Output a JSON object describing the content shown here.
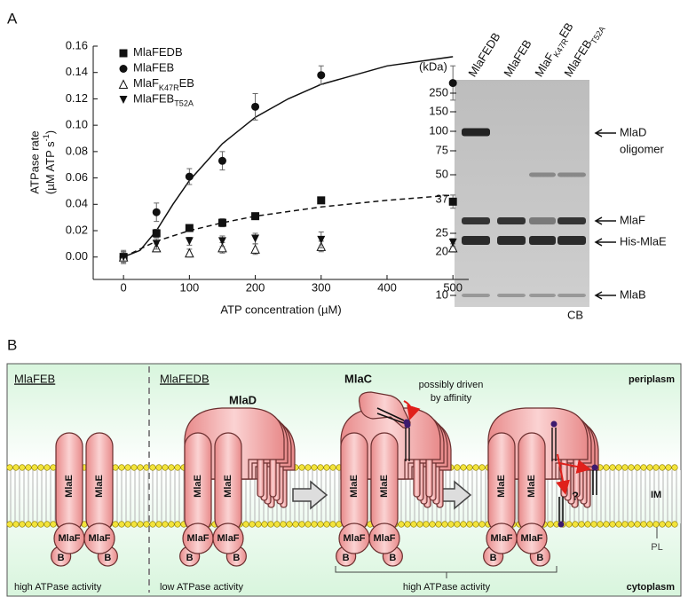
{
  "panel_labels": [
    "A",
    "B"
  ],
  "chart_data": {
    "type": "scatter",
    "xlabel": "ATP concentration  (µM)",
    "ylabel_line1": "ATPase rate",
    "ylabel_line2": [
      {
        "text": "(µM ATP s"
      },
      {
        "text": "-1",
        "sup": true
      },
      {
        "text": ")"
      }
    ],
    "x": [
      0,
      50,
      100,
      150,
      200,
      300,
      500
    ],
    "series": [
      {
        "name_parts": [
          {
            "text": "MlaFEDB"
          }
        ],
        "marker": "square",
        "color": "#111111",
        "values": [
          0.0,
          0.018,
          0.022,
          0.026,
          0.031,
          0.043,
          0.042
        ],
        "errors": [
          0.004,
          0.003,
          0.002,
          0.003,
          0.002,
          0.002,
          0.005
        ]
      },
      {
        "name_parts": [
          {
            "text": "MlaFEB"
          }
        ],
        "marker": "circle",
        "color": "#111111",
        "values": [
          0.0,
          0.034,
          0.061,
          0.073,
          0.114,
          0.138,
          0.132
        ],
        "errors": [
          0.004,
          0.007,
          0.006,
          0.007,
          0.01,
          0.007,
          0.013
        ]
      },
      {
        "name_parts": [
          {
            "text": "MlaF"
          },
          {
            "text": "K47R",
            "sub": true
          },
          {
            "text": "EB"
          }
        ],
        "marker": "triangle-open",
        "color": "#111111",
        "values": [
          0.0,
          0.007,
          0.003,
          0.007,
          0.006,
          0.008,
          0.007
        ],
        "errors": [
          0.005,
          0.003,
          0.003,
          0.004,
          0.004,
          0.004,
          0.003
        ]
      },
      {
        "name_parts": [
          {
            "text": "MlaFEB"
          },
          {
            "text": "T52A",
            "sub": true
          }
        ],
        "marker": "triangle-down",
        "color": "#111111",
        "values": [
          0.0,
          0.01,
          0.012,
          0.012,
          0.014,
          0.013,
          0.011
        ],
        "errors": [
          0.003,
          0.004,
          0.003,
          0.004,
          0.004,
          0.006,
          0.003
        ]
      }
    ],
    "fits": [
      {
        "style": "solid",
        "x": [
          0,
          25,
          50,
          75,
          100,
          150,
          200,
          250,
          300,
          400,
          500
        ],
        "values": [
          0.0,
          0.005,
          0.02,
          0.04,
          0.058,
          0.086,
          0.106,
          0.12,
          0.131,
          0.145,
          0.152
        ]
      },
      {
        "style": "dashed",
        "x": [
          0,
          50,
          100,
          150,
          200,
          300,
          400,
          500
        ],
        "values": [
          0.0,
          0.012,
          0.02,
          0.026,
          0.031,
          0.038,
          0.043,
          0.047
        ]
      }
    ],
    "xlim": [
      -46,
      524
    ],
    "ylim": [
      -0.017,
      0.16
    ],
    "xticks": [
      0,
      100,
      200,
      300,
      400,
      500
    ],
    "yticks": [
      {
        "value": 0,
        "label": "0.00"
      },
      {
        "value": 0.02,
        "label": "0.02"
      },
      {
        "value": 0.04,
        "label": "0.04"
      },
      {
        "value": 0.06,
        "label": "0.06"
      },
      {
        "value": 0.08,
        "label": "0.08"
      },
      {
        "value": 0.1,
        "label": "0.10"
      },
      {
        "value": 0.12,
        "label": "0.12"
      },
      {
        "value": 0.14,
        "label": "0.14"
      },
      {
        "value": 0.16,
        "label": "0.16"
      }
    ],
    "legend": "upper-left"
  },
  "gel": {
    "unit": "(kDa)",
    "lanes": [
      [
        {
          "text": "MlaFEDB"
        }
      ],
      [
        {
          "text": "MlaFEB"
        }
      ],
      [
        {
          "text": "MlaF"
        },
        {
          "text": "K47R",
          "sub": true
        },
        {
          "text": "EB"
        }
      ],
      [
        {
          "text": "MlaFEB"
        },
        {
          "text": "T52A",
          "sub": true
        }
      ]
    ],
    "markers": [
      250,
      150,
      100,
      75,
      50,
      37,
      25,
      20,
      10
    ],
    "bands": [
      "MlaD",
      "oligomer",
      "MlaF",
      "His-MlaE",
      "MlaB"
    ],
    "stain": "CB"
  },
  "diagram": {
    "headers": [
      "MlaFEB",
      "MlaFEDB"
    ],
    "mlaD": "MlaD",
    "mlaC": "MlaC",
    "note": [
      "possibly driven",
      "by affinity"
    ],
    "periplasm": "periplasm",
    "cytoplasm": "cytoplasm",
    "membrane": "IM",
    "lipid": "PL",
    "question": "?",
    "activities": [
      "high ATPase activity",
      "low ATPase activity",
      "high ATPase activity"
    ],
    "complexes": [
      {
        "E": [
          "MlaE",
          "MlaE"
        ],
        "F": [
          "MlaF",
          "MlaF"
        ],
        "B": [
          "B",
          "B"
        ]
      },
      {
        "E": [
          "MlaE",
          "MlaE"
        ],
        "F": [
          "MlaF",
          "MlaF"
        ],
        "B": [
          "B",
          "B"
        ]
      },
      {
        "E": [
          "MlaE",
          "MlaE"
        ],
        "F": [
          "MlaF",
          "MlaF"
        ],
        "B": [
          "B",
          "B"
        ]
      },
      {
        "E": [
          "MlaE",
          "MlaE"
        ],
        "F": [
          "MlaF",
          "MlaF"
        ],
        "B": [
          "B",
          "B"
        ]
      }
    ]
  }
}
